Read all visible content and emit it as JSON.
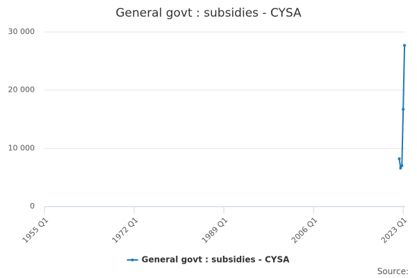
{
  "chart_data": {
    "type": "line",
    "title": "General govt : subsidies - CYSA",
    "x": [
      2022.25,
      2022.5,
      2022.75,
      2023,
      2023.25
    ],
    "xlim": [
      1955,
      2023.375
    ],
    "xticks": [
      {
        "value": 1955,
        "label": "1955 Q1"
      },
      {
        "value": 1972,
        "label": "1972 Q1"
      },
      {
        "value": 1989,
        "label": "1989 Q1"
      },
      {
        "value": 2006,
        "label": "2006 Q1"
      },
      {
        "value": 2023,
        "label": "2023 Q1"
      }
    ],
    "ylim": [
      0,
      30000
    ],
    "yticks": [
      0,
      {
        "value": 10000,
        "label": "10 000"
      },
      {
        "value": 20000,
        "label": "20 000"
      },
      {
        "value": 30000,
        "label": "30 000"
      }
    ],
    "grid": true,
    "series": [
      {
        "name": "General govt : subsidies - CYSA",
        "color": "#1f7ab8",
        "values": [
          8200,
          6600,
          7000,
          16700,
          27700
        ]
      }
    ],
    "legend": "bottom",
    "source": "Source:"
  }
}
